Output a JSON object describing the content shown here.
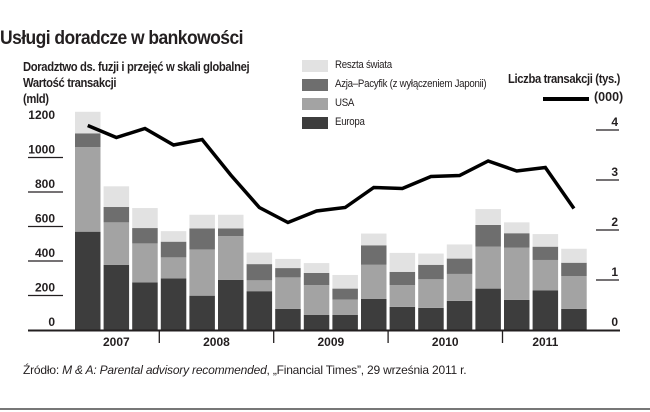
{
  "chart_data": {
    "type": "bar",
    "stacked": true,
    "title": "Usługi doradcze w bankowości",
    "subtitle": [
      "Doradztwo ds. fuzji i przejęć w skali globalnej",
      "Wartość transakcji",
      "(mld)"
    ],
    "ylabel_right": "Liczba transakcji (tys.)",
    "right_unit": "(000)",
    "x_tick_labels": [
      "2007",
      "2008",
      "2009",
      "2010",
      "2011"
    ],
    "bars_per_year": [
      3,
      4,
      4,
      4,
      3
    ],
    "ylim": [
      0,
      1200
    ],
    "y_ticks": [
      0,
      200,
      400,
      600,
      800,
      1000,
      1200
    ],
    "ylim_right": [
      0,
      4
    ],
    "y_ticks_right": [
      0,
      1,
      2,
      3,
      4
    ],
    "grid": false,
    "legend_placement": "top-center",
    "series": [
      {
        "name": "Europa",
        "color": "#3d3d3d",
        "values": [
          570,
          378,
          276,
          299,
          199,
          290,
          225,
          122,
          87,
          87,
          181,
          134,
          128,
          169,
          240,
          175,
          229,
          122
        ]
      },
      {
        "name": "USA",
        "color": "#a3a3a3",
        "values": [
          490,
          246,
          226,
          122,
          268,
          254,
          63,
          183,
          173,
          90,
          197,
          126,
          166,
          156,
          243,
          302,
          177,
          191
        ]
      },
      {
        "name": "Azja–Pacyfik (z wyłączeniem Japonii)",
        "color": "#6e6e6e",
        "values": [
          80,
          89,
          89,
          91,
          122,
          45,
          94,
          54,
          71,
          63,
          113,
          77,
          84,
          89,
          126,
          84,
          77,
          77
        ]
      },
      {
        "name": "Reszta świata",
        "color": "#e2e2e2",
        "values": [
          125,
          120,
          116,
          61,
          79,
          79,
          67,
          53,
          57,
          79,
          68,
          110,
          65,
          82,
          92,
          63,
          73,
          81
        ]
      }
    ],
    "line_series": {
      "axis": "right",
      "color": "#000000",
      "values": [
        4.09,
        3.85,
        4.03,
        3.7,
        3.81,
        3.1,
        2.45,
        2.15,
        2.38,
        2.45,
        2.85,
        2.83,
        3.07,
        3.09,
        3.38,
        3.18,
        3.25,
        2.43
      ]
    },
    "legend_order": [
      "Reszta świata",
      "Azja–Pacyfik (z wyłączeniem Japonii)",
      "USA",
      "Europa"
    ]
  },
  "source": {
    "prefix": "Źródło: ",
    "italic": "M & A: Parental advisory recommended",
    "suffix": ", „Financial Times”, 29 września 2011 r."
  }
}
